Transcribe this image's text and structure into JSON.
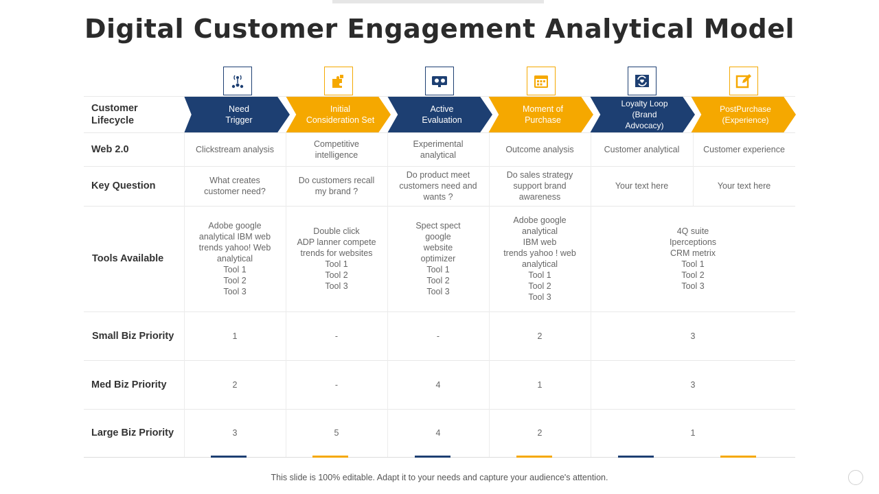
{
  "title": "Digital Customer Engagement Analytical Model",
  "footer": "This slide is 100% editable. Adapt it to your needs and capture your audience's attention.",
  "colors": {
    "blue": "#1d3f72",
    "orange": "#f5a800"
  },
  "row_labels": {
    "lifecycle": "Customer\nLifecycle",
    "web": "Web 2.0",
    "question": "Key Question",
    "tools": "Tools Available",
    "small": "Small Biz Priority",
    "med": "Med Biz Priority",
    "large": "Large Biz Priority"
  },
  "stages": [
    {
      "label": "Need\nTrigger",
      "color": "blue",
      "icon": "signal-tower-icon",
      "web": "Clickstream analysis",
      "question": "What creates\ncustomer need?"
    },
    {
      "label": "Initial\nConsideration Set",
      "color": "orange",
      "icon": "puzzle-icon",
      "web": "Competitive\nintelligence",
      "question": "Do customers recall\nmy brand ?"
    },
    {
      "label": "Active\nEvaluation",
      "color": "blue",
      "icon": "projector-icon",
      "web": "Experimental\nanalytical",
      "question": "Do product meet\ncustomers need and\nwants ?"
    },
    {
      "label": "Moment of\nPurchase",
      "color": "orange",
      "icon": "calendar-icon",
      "web": "Outcome analysis",
      "question": "Do sales strategy\nsupport brand\nawareness"
    },
    {
      "label": "Loyalty Loop (Brand\nAdvocacy)",
      "color": "blue",
      "icon": "refresh-heart-icon",
      "web": "Customer analytical",
      "question": "Your text here"
    },
    {
      "label": "PostPurchase\n(Experience)",
      "color": "orange",
      "icon": "edit-icon",
      "web": "Customer experience",
      "question": "Your text here"
    }
  ],
  "tools": [
    "Adobe google\nanalytical IBM web\ntrends yahoo!  Web\nanalytical\nTool 1\nTool 2\nTool 3",
    "Double  click\nADP lanner compete\ntrends for websites\nTool 1\nTool 2\nTool 3",
    "Spect spect\ngoogle\nwebsite\noptimizer\nTool 1\nTool 2\nTool 3",
    "Adobe google\nanalytical\nIBM web\ntrends yahoo ! web\nanalytical\nTool 1\nTool 2\nTool 3",
    "4Q suite\nIperceptions\nCRM metrix\nTool 1\nTool 2\nTool 3"
  ],
  "priorities": {
    "small": [
      "1",
      "-",
      "-",
      "2",
      "3"
    ],
    "med": [
      "2",
      "-",
      "4",
      "1",
      "3"
    ],
    "large": [
      "3",
      "5",
      "4",
      "2",
      "1"
    ]
  }
}
